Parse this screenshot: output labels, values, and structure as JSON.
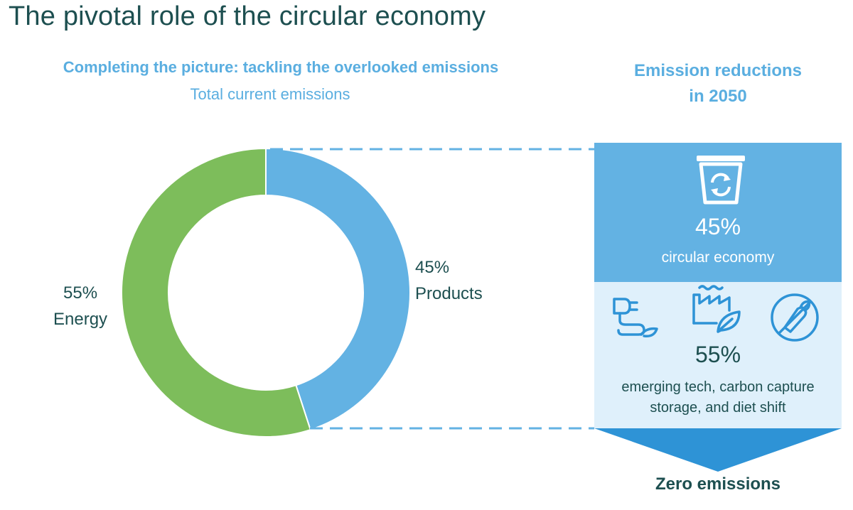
{
  "title": "The pivotal role of the circular economy",
  "subtitle": "Completing the picture: tackling the overlooked emissions",
  "subtitle2": "Total current emissions",
  "right_heading_line1": "Emission reductions",
  "right_heading_line2": "in 2050",
  "colors": {
    "products": "#63b2e3",
    "energy": "#7dbd5b",
    "dark_text": "#1d4f50",
    "light_blue_text": "#5aaee0",
    "panel_light": "#dff0fb",
    "arrow": "#2e93d6"
  },
  "chart_data": {
    "type": "pie",
    "title": "Total current emissions",
    "slices": [
      {
        "label": "Products",
        "value": 45,
        "value_label": "45%",
        "color": "#63b2e3"
      },
      {
        "label": "Energy",
        "value": 55,
        "value_label": "55%",
        "color": "#7dbd5b"
      }
    ]
  },
  "reductions": {
    "circular": {
      "percent": "45%",
      "label": "circular economy",
      "icon": "recycling-bin-icon"
    },
    "other": {
      "percent": "55%",
      "label_line1": "emerging tech, carbon capture",
      "label_line2": "storage, and diet shift",
      "icons": [
        "plug-leaf-icon",
        "factory-leaf-icon",
        "no-meat-icon"
      ]
    },
    "result": "Zero emissions"
  }
}
